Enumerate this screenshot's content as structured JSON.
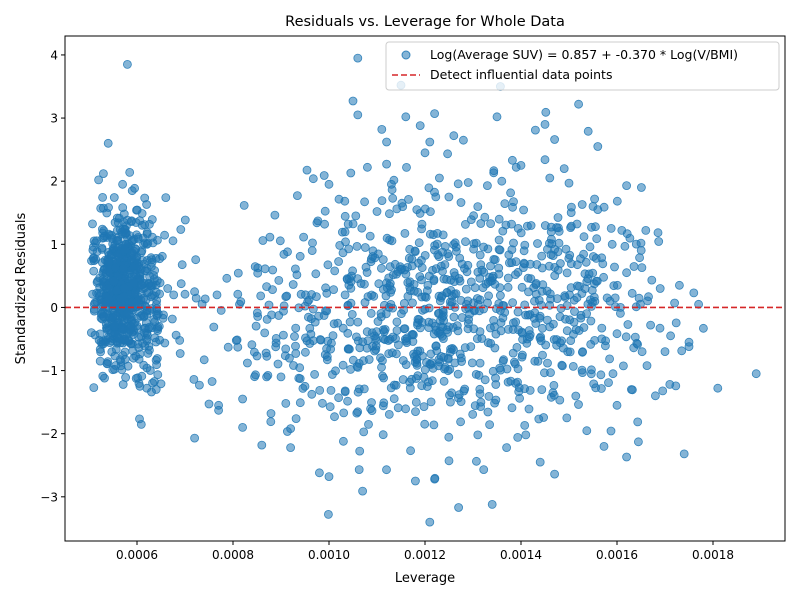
{
  "chart_data": {
    "type": "scatter",
    "title": "Residuals vs. Leverage for Whole Data",
    "xlabel": "Leverage",
    "ylabel": "Standardized Residuals",
    "xlim": [
      0.00045,
      0.00195
    ],
    "ylim": [
      -3.7,
      4.3
    ],
    "x_ticks": [
      0.0006,
      0.0008,
      0.001,
      0.0012,
      0.0014,
      0.0016,
      0.0018
    ],
    "x_tick_labels": [
      "0.0006",
      "0.0008",
      "0.0010",
      "0.0012",
      "0.0014",
      "0.0016",
      "0.0018"
    ],
    "y_ticks": [
      -3,
      -2,
      -1,
      0,
      1,
      2,
      3,
      4
    ],
    "y_tick_labels": [
      "−3",
      "−2",
      "−1",
      "0",
      "1",
      "2",
      "3",
      "4"
    ],
    "grid": false,
    "legend_position": "top-right",
    "reference_line": {
      "y": 0,
      "label": "Detect influential data points",
      "color": "#d62728",
      "style": "dashed"
    },
    "series": [
      {
        "name": "Log(Average SUV) = 0.857 + -0.370 * Log(V/BMI)",
        "color": "#1f77b4",
        "points": [
          [
            0.00058,
            3.85
          ],
          [
            0.00054,
            2.6
          ],
          [
            0.00052,
            2.02
          ],
          [
            0.00053,
            2.12
          ],
          [
            0.00057,
            1.95
          ],
          [
            0.00059,
            1.85
          ],
          [
            0.00062,
            1.63
          ],
          [
            0.00066,
            1.74
          ],
          [
            0.00051,
            -1.27
          ],
          [
            0.00064,
            -1.3
          ],
          [
            0.00065,
            -1.21
          ],
          [
            0.00061,
            -1.09
          ],
          [
            0.00072,
            0.25
          ],
          [
            0.0007,
            0.21
          ],
          [
            0.00069,
            -0.73
          ],
          [
            0.00072,
            -2.07
          ],
          [
            0.00073,
            -1.23
          ],
          [
            0.00074,
            -0.83
          ],
          [
            0.00075,
            -1.53
          ],
          [
            0.00076,
            -0.31
          ],
          [
            0.00077,
            -1.63
          ],
          [
            0.00077,
            -1.55
          ],
          [
            0.00079,
            -0.63
          ],
          [
            0.00081,
            -0.63
          ],
          [
            0.00081,
            0.21
          ],
          [
            0.00082,
            -1.9
          ],
          [
            0.00082,
            -1.45
          ],
          [
            0.00083,
            -0.88
          ],
          [
            0.00085,
            -0.77
          ],
          [
            0.00086,
            -2.18
          ],
          [
            0.00087,
            0.33
          ],
          [
            0.00087,
            -1.1
          ],
          [
            0.00089,
            -0.49
          ],
          [
            0.0009,
            -1.1
          ],
          [
            0.00091,
            0.17
          ],
          [
            0.00091,
            -1.52
          ],
          [
            0.00092,
            -1.92
          ],
          [
            0.00092,
            -2.22
          ],
          [
            0.00093,
            0.61
          ],
          [
            0.00094,
            0.81
          ],
          [
            0.00095,
            -1.25
          ],
          [
            0.00096,
            -0.33
          ],
          [
            0.00097,
            -1.06
          ],
          [
            0.00098,
            -2.62
          ],
          [
            0.00099,
            2.09
          ],
          [
            0.001,
            1.95
          ],
          [
            0.001,
            -2.68
          ],
          [
            0.00102,
            -1.43
          ],
          [
            0.00103,
            -2.12
          ],
          [
            0.00104,
            1.32
          ],
          [
            0.00105,
            3.27
          ],
          [
            0.00106,
            3.05
          ],
          [
            0.00106,
            3.95
          ],
          [
            0.00107,
            -2.91
          ],
          [
            0.00108,
            2.22
          ],
          [
            0.0011,
            1.52
          ],
          [
            0.00111,
            2.82
          ],
          [
            0.00112,
            2.27
          ],
          [
            0.00112,
            2.62
          ],
          [
            0.00113,
            1.95
          ],
          [
            0.00115,
            3.52
          ],
          [
            0.00116,
            3.02
          ],
          [
            0.00117,
            -2.27
          ],
          [
            0.00118,
            -2.75
          ],
          [
            0.00119,
            2.88
          ],
          [
            0.0012,
            2.45
          ],
          [
            0.00121,
            2.62
          ],
          [
            0.00121,
            -3.4
          ],
          [
            0.00122,
            3.07
          ],
          [
            0.00122,
            -2.72
          ],
          [
            0.00123,
            2.05
          ],
          [
            0.00125,
            -2.43
          ],
          [
            0.00126,
            2.72
          ],
          [
            0.00127,
            -3.17
          ],
          [
            0.00128,
            2.65
          ],
          [
            0.00129,
            1.98
          ],
          [
            0.00131,
            -2.02
          ],
          [
            0.00133,
            1.93
          ],
          [
            0.00134,
            -3.12
          ],
          [
            0.00135,
            3.02
          ],
          [
            0.00136,
            2.0
          ],
          [
            0.00137,
            -2.22
          ],
          [
            0.00139,
            2.22
          ],
          [
            0.0014,
            2.25
          ],
          [
            0.00141,
            -2.02
          ],
          [
            0.00143,
            2.81
          ],
          [
            0.00144,
            -2.45
          ],
          [
            0.00145,
            2.9
          ],
          [
            0.00146,
            2.05
          ],
          [
            0.00147,
            2.66
          ],
          [
            0.00147,
            -2.64
          ],
          [
            0.00149,
            2.2
          ],
          [
            0.0015,
            1.97
          ],
          [
            0.00152,
            3.22
          ],
          [
            0.00154,
            2.79
          ],
          [
            0.00155,
            1.6
          ],
          [
            0.00156,
            2.55
          ],
          [
            0.00156,
            1.55
          ],
          [
            0.00159,
            1.0
          ],
          [
            0.0016,
            -1.55
          ],
          [
            0.00161,
            1.22
          ],
          [
            0.00162,
            1.93
          ],
          [
            0.00162,
            0.55
          ],
          [
            0.00162,
            -2.37
          ],
          [
            0.00163,
            -1.3
          ],
          [
            0.00164,
            0.01
          ],
          [
            0.00166,
            1.22
          ],
          [
            0.00167,
            -0.28
          ],
          [
            0.00168,
            -1.4
          ],
          [
            0.00169,
            0.3
          ],
          [
            0.0017,
            -0.7
          ],
          [
            0.00171,
            -1.22
          ],
          [
            0.00172,
            0.07
          ],
          [
            0.00173,
            0.35
          ],
          [
            0.00174,
            -2.32
          ],
          [
            0.00175,
            -0.55
          ],
          [
            0.00175,
            -0.62
          ],
          [
            0.00176,
            0.23
          ],
          [
            0.00177,
            0.05
          ],
          [
            0.00178,
            -0.33
          ],
          [
            0.00181,
            -1.28
          ],
          [
            0.00189,
            -1.05
          ]
        ],
        "cluster_groups": [
          {
            "x_center": 0.000565,
            "x_spread": 3e-05,
            "y_center": 0.25,
            "y_spread": 0.55,
            "count": 620
          },
          {
            "x_center": 0.000625,
            "x_spread": 3e-05,
            "y_center": 0.1,
            "y_spread": 0.65,
            "count": 110
          },
          {
            "x_center": 0.0012,
            "x_spread": 0.00018,
            "y_center": -0.05,
            "y_spread": 0.95,
            "count": 760
          },
          {
            "x_center": 0.0015,
            "x_spread": 8e-05,
            "y_center": 0.05,
            "y_spread": 0.9,
            "count": 160
          }
        ]
      }
    ]
  }
}
